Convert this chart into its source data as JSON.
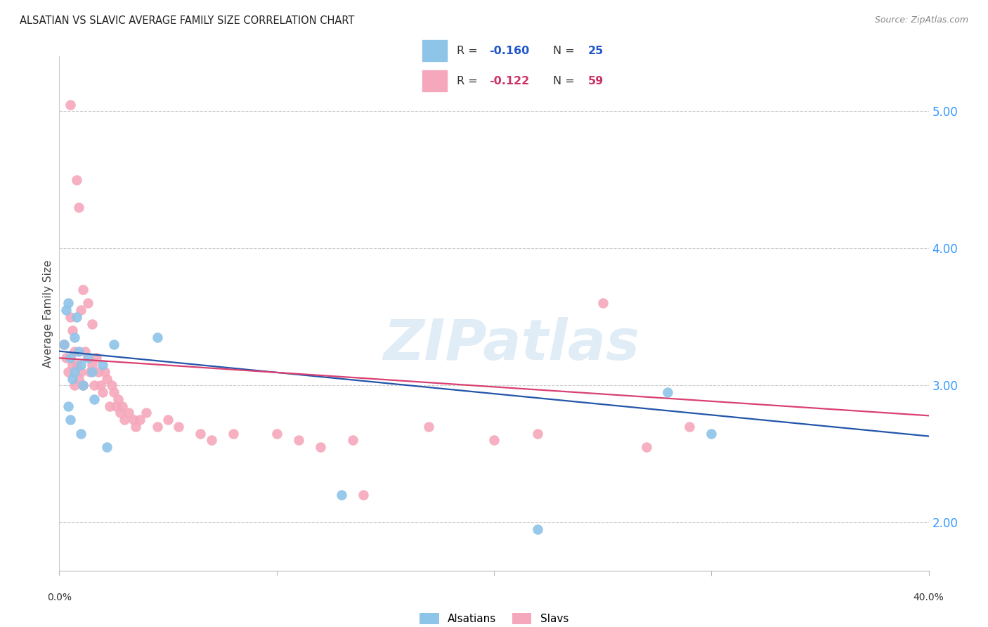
{
  "title": "ALSATIAN VS SLAVIC AVERAGE FAMILY SIZE CORRELATION CHART",
  "source": "Source: ZipAtlas.com",
  "ylabel": "Average Family Size",
  "xlim": [
    0.0,
    40.0
  ],
  "ylim": [
    1.65,
    5.4
  ],
  "yticks": [
    2.0,
    3.0,
    4.0,
    5.0
  ],
  "background_color": "#ffffff",
  "alsatian_color": "#8ec4e8",
  "slavic_color": "#f5a8bc",
  "alsatian_R": "-0.160",
  "alsatian_N": "25",
  "slavic_R": "-0.122",
  "slavic_N": "59",
  "alsatian_x": [
    0.2,
    0.3,
    0.4,
    0.4,
    0.5,
    0.5,
    0.6,
    0.7,
    0.7,
    0.8,
    0.9,
    1.0,
    1.0,
    1.1,
    1.3,
    1.5,
    1.6,
    2.0,
    2.2,
    2.5,
    4.5,
    13.0,
    22.0,
    28.0,
    30.0
  ],
  "alsatian_y": [
    3.3,
    3.55,
    3.6,
    2.85,
    3.2,
    2.75,
    3.05,
    3.35,
    3.1,
    3.5,
    3.25,
    3.15,
    2.65,
    3.0,
    3.2,
    3.1,
    2.9,
    3.15,
    2.55,
    3.3,
    3.35,
    2.2,
    1.95,
    2.95,
    2.65
  ],
  "slavic_x": [
    0.2,
    0.3,
    0.4,
    0.5,
    0.5,
    0.6,
    0.6,
    0.7,
    0.7,
    0.8,
    0.8,
    0.9,
    0.9,
    1.0,
    1.0,
    1.1,
    1.1,
    1.2,
    1.3,
    1.4,
    1.5,
    1.5,
    1.6,
    1.7,
    1.8,
    1.9,
    2.0,
    2.1,
    2.2,
    2.3,
    2.4,
    2.5,
    2.6,
    2.7,
    2.8,
    2.9,
    3.0,
    3.2,
    3.4,
    3.5,
    3.7,
    4.0,
    4.5,
    5.0,
    5.5,
    6.5,
    7.0,
    8.0,
    10.0,
    11.0,
    12.0,
    13.5,
    14.0,
    17.0,
    20.0,
    22.0,
    25.0,
    27.0,
    29.0
  ],
  "slavic_y": [
    3.3,
    3.2,
    3.1,
    5.05,
    3.5,
    3.4,
    3.15,
    3.25,
    3.0,
    4.5,
    3.15,
    4.3,
    3.05,
    3.55,
    3.1,
    3.7,
    3.0,
    3.25,
    3.6,
    3.1,
    3.45,
    3.15,
    3.0,
    3.2,
    3.1,
    3.0,
    2.95,
    3.1,
    3.05,
    2.85,
    3.0,
    2.95,
    2.85,
    2.9,
    2.8,
    2.85,
    2.75,
    2.8,
    2.75,
    2.7,
    2.75,
    2.8,
    2.7,
    2.75,
    2.7,
    2.65,
    2.6,
    2.65,
    2.65,
    2.6,
    2.55,
    2.6,
    2.2,
    2.7,
    2.6,
    2.65,
    3.6,
    2.55,
    2.7
  ],
  "line_blue_color": "#2255aa",
  "line_pink_color": "#d94070",
  "line_blue_x0": 0.0,
  "line_blue_y0": 3.25,
  "line_blue_x1": 40.0,
  "line_blue_y1": 2.63,
  "line_pink_x0": 0.0,
  "line_pink_y0": 3.2,
  "line_pink_x1": 40.0,
  "line_pink_y1": 2.78
}
